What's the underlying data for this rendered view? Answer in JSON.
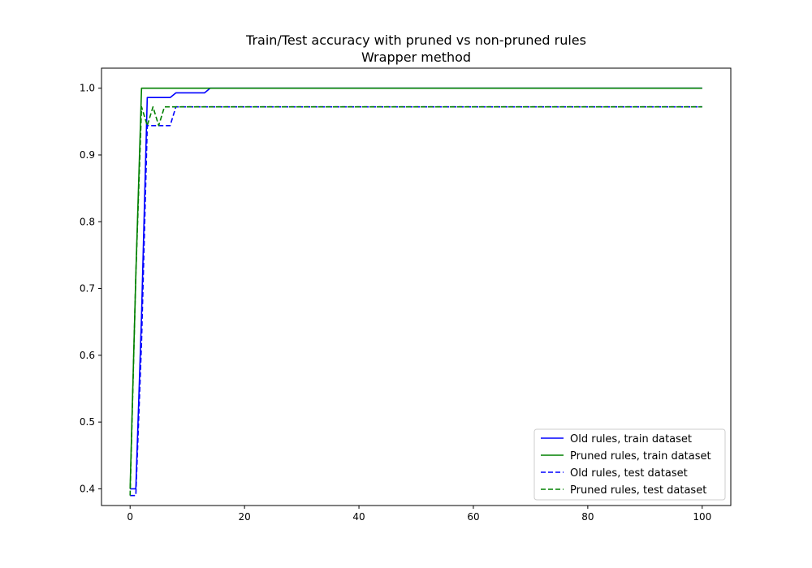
{
  "chart_data": {
    "type": "line",
    "title": "Train/Test accuracy with pruned vs non-pruned rules",
    "subtitle": "Wrapper method",
    "xlabel": "",
    "ylabel": "",
    "xlim": [
      -5,
      105
    ],
    "ylim": [
      0.375,
      1.03
    ],
    "xticks": [
      0,
      20,
      40,
      60,
      80,
      100
    ],
    "yticks": [
      0.4,
      0.5,
      0.6,
      0.7,
      0.8,
      0.9,
      1.0
    ],
    "xtick_labels": [
      "0",
      "20",
      "40",
      "60",
      "80",
      "100"
    ],
    "ytick_labels": [
      "0.4",
      "0.5",
      "0.6",
      "0.7",
      "0.8",
      "0.9",
      "1.0"
    ],
    "grid": false,
    "legend_position": "bottom-right",
    "series": [
      {
        "name": "Old rules, train dataset",
        "color": "#0000ff",
        "linestyle": "solid",
        "x": [
          0,
          1,
          2,
          3,
          4,
          5,
          6,
          7,
          8,
          9,
          10,
          11,
          12,
          13,
          14,
          100
        ],
        "y": [
          0.4,
          0.4,
          0.66,
          0.986,
          0.986,
          0.986,
          0.986,
          0.986,
          0.993,
          0.993,
          0.993,
          0.993,
          0.993,
          0.993,
          1.0,
          1.0
        ]
      },
      {
        "name": "Pruned rules, train dataset",
        "color": "#008000",
        "linestyle": "solid",
        "x": [
          0,
          1,
          2,
          100
        ],
        "y": [
          0.4,
          0.72,
          1.0,
          1.0
        ]
      },
      {
        "name": "Old rules, test dataset",
        "color": "#0000ff",
        "linestyle": "dashed",
        "x": [
          0,
          1,
          2,
          3,
          4,
          5,
          6,
          7,
          8,
          100
        ],
        "y": [
          0.39,
          0.39,
          0.62,
          0.944,
          0.944,
          0.944,
          0.944,
          0.944,
          0.972,
          0.972
        ]
      },
      {
        "name": "Pruned rules, test dataset",
        "color": "#008000",
        "linestyle": "dashed",
        "x": [
          0,
          1,
          2,
          3,
          4,
          5,
          6,
          7,
          100
        ],
        "y": [
          0.39,
          0.72,
          0.972,
          0.944,
          0.972,
          0.944,
          0.972,
          0.972,
          0.972
        ]
      }
    ]
  }
}
